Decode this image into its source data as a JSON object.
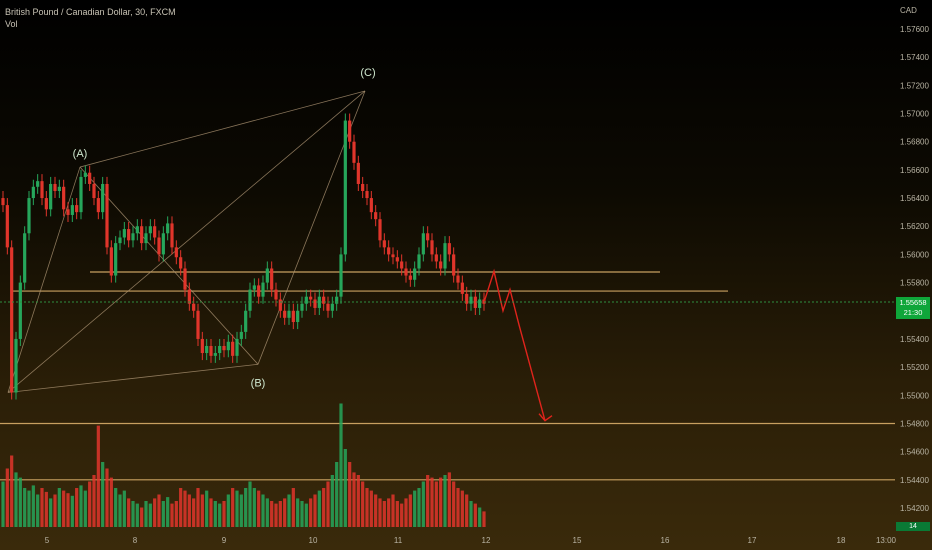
{
  "legend": {
    "symbol": "British Pound / Canadian Dollar, 30, FXCM",
    "vol": "Vol"
  },
  "currency": "CAD",
  "price_tag": {
    "price": "1.55658",
    "countdown": "21:30",
    "color": "#0fa63a"
  },
  "vol_tag": "14",
  "colors": {
    "up": "#26a65b",
    "down": "#e0352b",
    "bullet_line": "#c8a060",
    "arrow": "#e0241c",
    "wave_line": "#a89070"
  },
  "chart_data": {
    "type": "candlestick",
    "title": "British Pound / Canadian Dollar, 30, FXCM",
    "y_ticks": [
      "1.57600",
      "1.57400",
      "1.57200",
      "1.57000",
      "1.56800",
      "1.56600",
      "1.56400",
      "1.56200",
      "1.56000",
      "1.55800",
      "1.55400",
      "1.55200",
      "1.55000",
      "1.54800",
      "1.54600",
      "1.54400",
      "1.54200"
    ],
    "ylim": [
      1.5415,
      1.5775
    ],
    "x_ticks": [
      "5",
      "8",
      "9",
      "10",
      "11",
      "12",
      "15",
      "16",
      "17",
      "18",
      "13:00"
    ],
    "wave_labels": [
      {
        "label": "(A)",
        "price": 1.5662
      },
      {
        "label": "(B)",
        "price": 1.5522
      },
      {
        "label": "(C)",
        "price": 1.5716
      }
    ],
    "horizontal_levels": [
      1.55875,
      1.5574,
      1.548,
      1.544
    ],
    "current_price": 1.55658,
    "projection": [
      1.5566,
      1.5588,
      1.556,
      1.5575,
      1.555,
      1.5482
    ],
    "closes": [
      1.5635,
      1.5605,
      1.5502,
      1.554,
      1.558,
      1.5615,
      1.564,
      1.5648,
      1.5652,
      1.564,
      1.5632,
      1.565,
      1.5645,
      1.5648,
      1.5632,
      1.5628,
      1.5635,
      1.563,
      1.5655,
      1.5658,
      1.565,
      1.564,
      1.563,
      1.565,
      1.5605,
      1.5585,
      1.5608,
      1.5612,
      1.5618,
      1.561,
      1.5615,
      1.562,
      1.5608,
      1.5615,
      1.562,
      1.5612,
      1.56,
      1.5615,
      1.5622,
      1.5605,
      1.5598,
      1.559,
      1.5575,
      1.5565,
      1.556,
      1.554,
      1.553,
      1.5535,
      1.5528,
      1.553,
      1.5535,
      1.5532,
      1.5538,
      1.5528,
      1.554,
      1.5545,
      1.556,
      1.5575,
      1.5578,
      1.557,
      1.558,
      1.559,
      1.5575,
      1.5568,
      1.556,
      1.5555,
      1.556,
      1.5552,
      1.556,
      1.5565,
      1.557,
      1.5568,
      1.5562,
      1.557,
      1.5565,
      1.556,
      1.5565,
      1.557,
      1.56,
      1.5695,
      1.568,
      1.5665,
      1.565,
      1.5645,
      1.564,
      1.563,
      1.5625,
      1.561,
      1.5605,
      1.56,
      1.5598,
      1.5595,
      1.559,
      1.5585,
      1.5582,
      1.559,
      1.56,
      1.5615,
      1.561,
      1.56,
      1.5595,
      1.559,
      1.5608,
      1.56,
      1.5585,
      1.558,
      1.5572,
      1.5565,
      1.557,
      1.5562,
      1.5568,
      1.5565
    ],
    "volumes": [
      0.35,
      0.45,
      0.55,
      0.42,
      0.38,
      0.3,
      0.28,
      0.32,
      0.25,
      0.3,
      0.27,
      0.22,
      0.25,
      0.3,
      0.28,
      0.26,
      0.24,
      0.3,
      0.32,
      0.28,
      0.35,
      0.4,
      0.78,
      0.5,
      0.45,
      0.38,
      0.3,
      0.25,
      0.28,
      0.22,
      0.2,
      0.18,
      0.15,
      0.2,
      0.18,
      0.22,
      0.25,
      0.2,
      0.23,
      0.18,
      0.2,
      0.3,
      0.28,
      0.25,
      0.22,
      0.3,
      0.25,
      0.28,
      0.22,
      0.2,
      0.18,
      0.2,
      0.25,
      0.3,
      0.28,
      0.25,
      0.3,
      0.35,
      0.3,
      0.28,
      0.25,
      0.22,
      0.2,
      0.18,
      0.2,
      0.22,
      0.25,
      0.3,
      0.22,
      0.2,
      0.18,
      0.22,
      0.25,
      0.28,
      0.3,
      0.35,
      0.4,
      0.5,
      0.95,
      0.6,
      0.5,
      0.42,
      0.4,
      0.35,
      0.3,
      0.28,
      0.25,
      0.22,
      0.2,
      0.22,
      0.25,
      0.2,
      0.18,
      0.22,
      0.25,
      0.28,
      0.3,
      0.35,
      0.4,
      0.38,
      0.35,
      0.38,
      0.4,
      0.42,
      0.35,
      0.3,
      0.28,
      0.25,
      0.2,
      0.18,
      0.15,
      0.12
    ]
  }
}
